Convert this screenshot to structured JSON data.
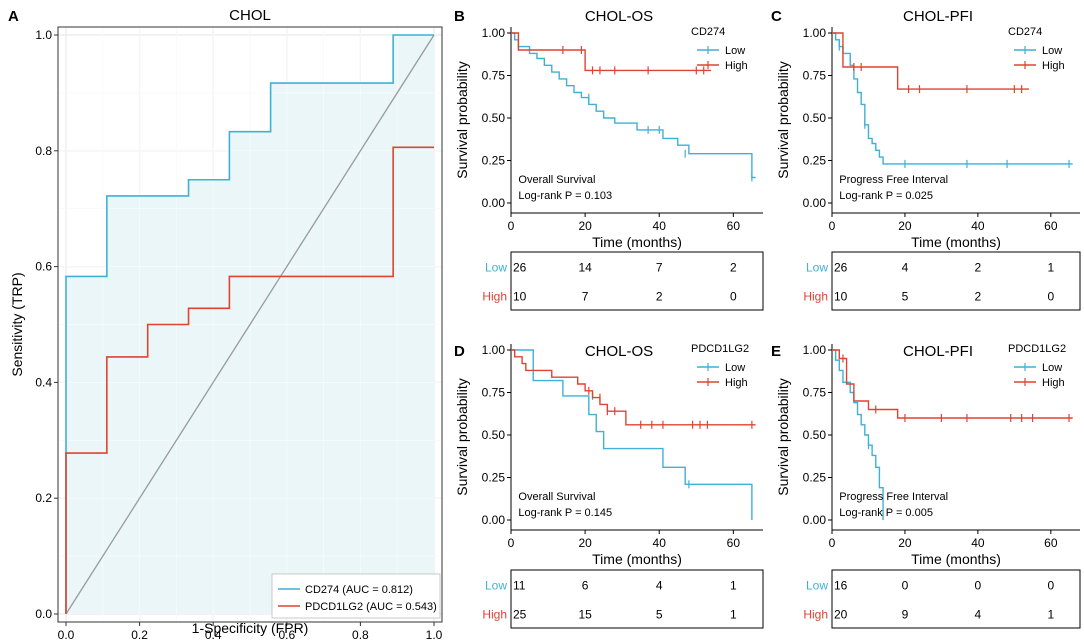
{
  "colors": {
    "low": "#3fb1d6",
    "high": "#de4431",
    "frame": "#000000",
    "grid": "#ebebeb"
  },
  "chart_data": [
    {
      "panel": "A",
      "type": "line",
      "title": "CHOL",
      "xlabel": "1-Specificity  (FPR)",
      "ylabel": "Sensitivity (TRP)",
      "xlim": [
        0,
        1
      ],
      "ylim": [
        0,
        1
      ],
      "xticks": [
        "0.0",
        "0.2",
        "0.4",
        "0.6",
        "0.8",
        "1.0"
      ],
      "yticks": [
        "0.0",
        "0.2",
        "0.4",
        "0.6",
        "0.8",
        "1.0"
      ],
      "diagonal": true,
      "series": [
        {
          "name": "CD274 (AUC = 0.812)",
          "color": "#3fb1d6",
          "fill": "#eaf6f8",
          "x": [
            0,
            0,
            0.111,
            0.111,
            0.333,
            0.333,
            0.444,
            0.444,
            0.556,
            0.556,
            0.889,
            0.889,
            1.0
          ],
          "y": [
            0,
            0.583,
            0.583,
            0.722,
            0.722,
            0.75,
            0.75,
            0.833,
            0.833,
            0.917,
            0.917,
            1.0,
            1.0
          ]
        },
        {
          "name": "PDCD1LG2 (AUC = 0.543)",
          "color": "#de4431",
          "fill": "#ede0e1",
          "x": [
            0,
            0,
            0.111,
            0.111,
            0.222,
            0.222,
            0.333,
            0.333,
            0.444,
            0.444,
            0.889,
            0.889,
            1.0
          ],
          "y": [
            0,
            0.278,
            0.278,
            0.444,
            0.444,
            0.5,
            0.5,
            0.528,
            0.528,
            0.583,
            0.583,
            0.806,
            0.806
          ]
        }
      ]
    },
    {
      "panel": "B",
      "type": "line",
      "title": "CHOL-OS",
      "legend_title": "CD274",
      "legend": [
        "Low",
        "High"
      ],
      "xlabel": "Time (months)",
      "ylabel": "Survival probability",
      "xlim": [
        0,
        68
      ],
      "ylim": [
        0,
        1
      ],
      "xticks": [
        "0",
        "20",
        "40",
        "60"
      ],
      "yticks": [
        "0.00",
        "0.25",
        "0.50",
        "0.75",
        "1.00"
      ],
      "annotations": [
        "Overall Survival",
        "Log-rank P = 0.103"
      ],
      "series": [
        {
          "name": "Low",
          "color": "#3fb1d6",
          "steps": [
            [
              0,
              1
            ],
            [
              1,
              0.96
            ],
            [
              2,
              0.92
            ],
            [
              5,
              0.88
            ],
            [
              7,
              0.85
            ],
            [
              9,
              0.81
            ],
            [
              11,
              0.77
            ],
            [
              13,
              0.73
            ],
            [
              15,
              0.69
            ],
            [
              17,
              0.65
            ],
            [
              19,
              0.62
            ],
            [
              21,
              0.58
            ],
            [
              23,
              0.54
            ],
            [
              25,
              0.5
            ],
            [
              28,
              0.47
            ],
            [
              34,
              0.43
            ],
            [
              41,
              0.38
            ],
            [
              45,
              0.34
            ],
            [
              48,
              0.29
            ],
            [
              65,
              0.15
            ]
          ],
          "end": 66,
          "censor": [
            [
              2,
              0.92
            ],
            [
              21,
              0.62
            ],
            [
              37,
              0.43
            ],
            [
              40,
              0.43
            ],
            [
              47,
              0.29
            ],
            [
              65,
              0.15
            ]
          ]
        },
        {
          "name": "High",
          "color": "#de4431",
          "steps": [
            [
              0,
              1
            ],
            [
              2,
              0.9
            ],
            [
              20,
              0.78
            ]
          ],
          "end": 54,
          "censor": [
            [
              14,
              0.9
            ],
            [
              19,
              0.9
            ],
            [
              22,
              0.78
            ],
            [
              24,
              0.78
            ],
            [
              28,
              0.78
            ],
            [
              37,
              0.78
            ],
            [
              50,
              0.78
            ],
            [
              52,
              0.78
            ]
          ]
        }
      ],
      "risk_table": {
        "times": [
          0,
          20,
          40,
          60
        ],
        "rows": [
          {
            "label": "Low",
            "values": [
              "26",
              "14",
              "7",
              "2"
            ]
          },
          {
            "label": "High",
            "values": [
              "10",
              "7",
              "2",
              "0"
            ]
          }
        ]
      }
    },
    {
      "panel": "C",
      "type": "line",
      "title": "CHOL-PFI",
      "legend_title": "CD274",
      "legend": [
        "Low",
        "High"
      ],
      "xlabel": "Time (months)",
      "ylabel": "Survival probability",
      "xlim": [
        0,
        68
      ],
      "ylim": [
        0,
        1
      ],
      "xticks": [
        "0",
        "20",
        "40",
        "60"
      ],
      "yticks": [
        "0.00",
        "0.25",
        "0.50",
        "0.75",
        "1.00"
      ],
      "annotations": [
        "Progress Free Interval",
        "Log-rank P = 0.025"
      ],
      "series": [
        {
          "name": "Low",
          "color": "#3fb1d6",
          "steps": [
            [
              0,
              1
            ],
            [
              1,
              0.96
            ],
            [
              2,
              0.92
            ],
            [
              3,
              0.88
            ],
            [
              5,
              0.81
            ],
            [
              6,
              0.73
            ],
            [
              7,
              0.65
            ],
            [
              8,
              0.58
            ],
            [
              9,
              0.46
            ],
            [
              10,
              0.38
            ],
            [
              11,
              0.35
            ],
            [
              12,
              0.31
            ],
            [
              13,
              0.27
            ],
            [
              14,
              0.23
            ]
          ],
          "end": 66,
          "censor": [
            [
              2,
              0.92
            ],
            [
              9,
              0.46
            ],
            [
              20,
              0.23
            ],
            [
              37,
              0.23
            ],
            [
              48,
              0.23
            ],
            [
              65,
              0.23
            ]
          ]
        },
        {
          "name": "High",
          "color": "#de4431",
          "steps": [
            [
              0,
              1
            ],
            [
              3,
              0.8
            ],
            [
              18,
              0.67
            ]
          ],
          "end": 54,
          "censor": [
            [
              6,
              0.8
            ],
            [
              8,
              0.8
            ],
            [
              21,
              0.67
            ],
            [
              24,
              0.67
            ],
            [
              37,
              0.67
            ],
            [
              50,
              0.67
            ],
            [
              52,
              0.67
            ]
          ]
        }
      ],
      "risk_table": {
        "times": [
          0,
          20,
          40,
          60
        ],
        "rows": [
          {
            "label": "Low",
            "values": [
              "26",
              "4",
              "2",
              "1"
            ]
          },
          {
            "label": "High",
            "values": [
              "10",
              "5",
              "2",
              "0"
            ]
          }
        ]
      }
    },
    {
      "panel": "D",
      "type": "line",
      "title": "CHOL-OS",
      "legend_title": "PDCD1LG2",
      "legend": [
        "Low",
        "High"
      ],
      "xlabel": "Time (months)",
      "ylabel": "Survival probability",
      "xlim": [
        0,
        68
      ],
      "ylim": [
        0,
        1
      ],
      "xticks": [
        "0",
        "20",
        "40",
        "60"
      ],
      "yticks": [
        "0.00",
        "0.25",
        "0.50",
        "0.75",
        "1.00"
      ],
      "annotations": [
        "Overall Survival",
        "Log-rank P = 0.145"
      ],
      "series": [
        {
          "name": "Low",
          "color": "#3fb1d6",
          "steps": [
            [
              0,
              1
            ],
            [
              6,
              0.82
            ],
            [
              14,
              0.73
            ],
            [
              21,
              0.62
            ],
            [
              23,
              0.52
            ],
            [
              25,
              0.42
            ],
            [
              41,
              0.31
            ],
            [
              47,
              0.21
            ],
            [
              65,
              0
            ]
          ],
          "end": 65,
          "censor": [
            [
              22,
              0.73
            ],
            [
              48,
              0.21
            ]
          ]
        },
        {
          "name": "High",
          "color": "#de4431",
          "steps": [
            [
              0,
              1
            ],
            [
              1,
              0.96
            ],
            [
              3,
              0.92
            ],
            [
              4,
              0.88
            ],
            [
              11,
              0.84
            ],
            [
              18,
              0.8
            ],
            [
              20,
              0.76
            ],
            [
              22,
              0.72
            ],
            [
              24,
              0.68
            ],
            [
              26,
              0.64
            ],
            [
              31,
              0.56
            ]
          ],
          "end": 66,
          "censor": [
            [
              21,
              0.76
            ],
            [
              24,
              0.72
            ],
            [
              26,
              0.64
            ],
            [
              28,
              0.64
            ],
            [
              35,
              0.56
            ],
            [
              38,
              0.56
            ],
            [
              41,
              0.56
            ],
            [
              49,
              0.56
            ],
            [
              51,
              0.56
            ],
            [
              53,
              0.56
            ],
            [
              65,
              0.56
            ]
          ]
        }
      ],
      "risk_table": {
        "times": [
          0,
          20,
          40,
          60
        ],
        "rows": [
          {
            "label": "Low",
            "values": [
              "11",
              "6",
              "4",
              "1"
            ]
          },
          {
            "label": "High",
            "values": [
              "25",
              "15",
              "5",
              "1"
            ]
          }
        ]
      }
    },
    {
      "panel": "E",
      "type": "line",
      "title": "CHOL-PFI",
      "legend_title": "PDCD1LG2",
      "legend": [
        "Low",
        "High"
      ],
      "xlabel": "Time (months)",
      "ylabel": "Survival probability",
      "xlim": [
        0,
        68
      ],
      "ylim": [
        0,
        1
      ],
      "xticks": [
        "0",
        "20",
        "40",
        "60"
      ],
      "yticks": [
        "0.00",
        "0.25",
        "0.50",
        "0.75",
        "1.00"
      ],
      "annotations": [
        "Progress Free Interval",
        "Log-rank P = 0.005"
      ],
      "series": [
        {
          "name": "Low",
          "color": "#3fb1d6",
          "steps": [
            [
              0,
              1
            ],
            [
              1,
              0.94
            ],
            [
              2,
              0.88
            ],
            [
              3,
              0.81
            ],
            [
              5,
              0.75
            ],
            [
              6,
              0.69
            ],
            [
              7,
              0.62
            ],
            [
              8,
              0.56
            ],
            [
              9,
              0.5
            ],
            [
              10,
              0.44
            ],
            [
              11,
              0.38
            ],
            [
              12,
              0.31
            ],
            [
              13,
              0.19
            ],
            [
              14,
              0
            ]
          ],
          "end": 14,
          "censor": [
            [
              10,
              0.44
            ]
          ]
        },
        {
          "name": "High",
          "color": "#de4431",
          "steps": [
            [
              0,
              1
            ],
            [
              2,
              0.95
            ],
            [
              4,
              0.8
            ],
            [
              6,
              0.7
            ],
            [
              10,
              0.65
            ],
            [
              18,
              0.6
            ]
          ],
          "end": 66,
          "censor": [
            [
              3,
              0.95
            ],
            [
              12,
              0.65
            ],
            [
              20,
              0.6
            ],
            [
              30,
              0.6
            ],
            [
              37,
              0.6
            ],
            [
              49,
              0.6
            ],
            [
              52,
              0.6
            ],
            [
              55,
              0.6
            ],
            [
              65,
              0.6
            ]
          ]
        }
      ],
      "risk_table": {
        "times": [
          0,
          20,
          40,
          60
        ],
        "rows": [
          {
            "label": "Low",
            "values": [
              "16",
              "0",
              "0",
              "0"
            ]
          },
          {
            "label": "High",
            "values": [
              "20",
              "9",
              "4",
              "1"
            ]
          }
        ]
      }
    }
  ]
}
